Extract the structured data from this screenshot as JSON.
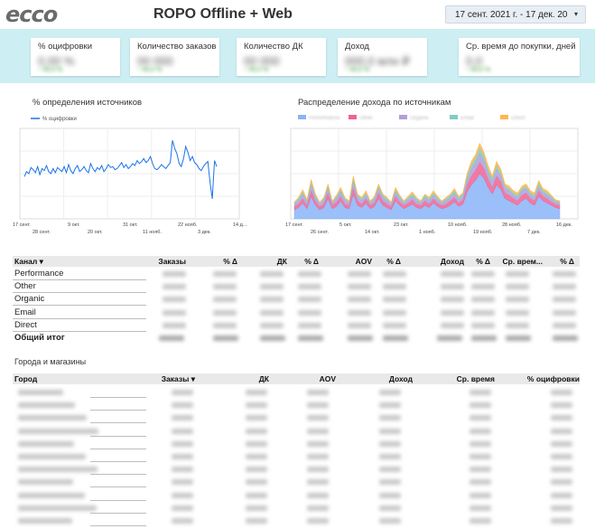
{
  "header": {
    "logo": "ecco",
    "title": "ROPO Offline + Web",
    "date_range": "17 сент. 2021 г. - 17 дек. 20",
    "caret": "▾"
  },
  "kpis": [
    {
      "label": "% оцифровки"
    },
    {
      "label": "Количество заказов"
    },
    {
      "label": "Количество ДК"
    },
    {
      "label": "Доход"
    },
    {
      "label": "Ср. время до покупки, дней"
    }
  ],
  "chart1": {
    "title": "% определения источников",
    "legend": "% оцифровки",
    "x_ticks_top": [
      "17 сент.",
      "9 окт.",
      "31 окт.",
      "22 нояб.",
      "14 д..."
    ],
    "x_ticks_bottom": [
      "28 сент.",
      "20 окт.",
      "11 нояб.",
      "3 дек."
    ]
  },
  "chart2": {
    "title": "Распределение дохода по источникам",
    "x_ticks_top": [
      "17 сент.",
      "5 окт.",
      "23 окт.",
      "10 нояб.",
      "28 нояб.",
      "16 дек."
    ],
    "x_ticks_bottom": [
      "26 сент.",
      "14 окт.",
      "1 нояб.",
      "19 нояб.",
      "7 дек."
    ]
  },
  "chart_data": [
    {
      "type": "line",
      "title": "% определения источников",
      "series": [
        {
          "name": "% оцифровки",
          "values": [
            42,
            47,
            45,
            51,
            49,
            46,
            52,
            44,
            50,
            48,
            53,
            47,
            45,
            50,
            46,
            51,
            49,
            47,
            52,
            46,
            54,
            48,
            45,
            50,
            53,
            47,
            49,
            52,
            48,
            46,
            55,
            50,
            47,
            51,
            49,
            53,
            47,
            50,
            54,
            51,
            52,
            49,
            50,
            53,
            56,
            51,
            54,
            50,
            52,
            55,
            53,
            58,
            55,
            57,
            60,
            56,
            58,
            62,
            55,
            50,
            49,
            51,
            54,
            52,
            50,
            53,
            56,
            78,
            70,
            65,
            55,
            52,
            60,
            72,
            66,
            58,
            62,
            56,
            54,
            50,
            48,
            52,
            55,
            57,
            36,
            20,
            58,
            52
          ]
        }
      ]
    },
    {
      "type": "area",
      "title": "Распределение дохода по источникам",
      "series": [
        {
          "name": "Performance",
          "values": [
            8,
            10,
            14,
            9,
            20,
            12,
            8,
            10,
            18,
            9,
            11,
            16,
            10,
            9,
            22,
            12,
            10,
            14,
            9,
            11,
            18,
            12,
            10,
            8,
            16,
            12,
            9,
            11,
            13,
            10,
            9,
            12,
            10,
            14,
            11,
            9,
            10,
            12,
            15,
            11,
            13,
            24,
            30,
            34,
            40,
            36,
            28,
            22,
            30,
            26,
            18,
            16,
            14,
            12,
            16,
            18,
            14,
            12,
            20,
            16,
            14,
            12,
            10,
            9
          ]
        },
        {
          "name": "Other",
          "values": [
            3,
            3,
            4,
            3,
            5,
            4,
            3,
            3,
            5,
            3,
            4,
            4,
            3,
            3,
            6,
            4,
            3,
            4,
            3,
            3,
            5,
            4,
            3,
            3,
            4,
            3,
            3,
            3,
            4,
            3,
            3,
            4,
            3,
            4,
            3,
            3,
            3,
            4,
            4,
            3,
            4,
            6,
            8,
            9,
            10,
            9,
            7,
            6,
            8,
            7,
            5,
            5,
            4,
            4,
            5,
            5,
            4,
            4,
            5,
            4,
            4,
            3,
            3,
            3
          ]
        },
        {
          "name": "Organic",
          "values": [
            2,
            3,
            4,
            3,
            5,
            3,
            2,
            3,
            4,
            2,
            3,
            4,
            3,
            2,
            5,
            3,
            3,
            3,
            2,
            3,
            4,
            3,
            3,
            2,
            4,
            3,
            2,
            3,
            3,
            3,
            2,
            3,
            3,
            3,
            3,
            2,
            3,
            3,
            4,
            3,
            3,
            5,
            6,
            7,
            8,
            7,
            6,
            5,
            6,
            5,
            4,
            4,
            3,
            3,
            4,
            4,
            3,
            3,
            4,
            3,
            3,
            3,
            2,
            2
          ]
        },
        {
          "name": "Email",
          "values": [
            1,
            2,
            2,
            1,
            3,
            2,
            1,
            2,
            2,
            1,
            2,
            2,
            2,
            1,
            3,
            2,
            2,
            2,
            1,
            2,
            2,
            2,
            2,
            1,
            2,
            2,
            1,
            2,
            2,
            2,
            1,
            2,
            2,
            2,
            2,
            1,
            2,
            2,
            2,
            2,
            2,
            3,
            4,
            4,
            5,
            4,
            3,
            3,
            4,
            3,
            2,
            2,
            2,
            2,
            2,
            2,
            2,
            2,
            3,
            2,
            2,
            2,
            1,
            1
          ]
        },
        {
          "name": "Direct",
          "values": [
            1,
            1,
            2,
            1,
            2,
            1,
            1,
            1,
            2,
            1,
            1,
            2,
            1,
            1,
            2,
            1,
            1,
            2,
            1,
            1,
            2,
            1,
            1,
            1,
            2,
            1,
            1,
            1,
            2,
            1,
            1,
            1,
            1,
            2,
            1,
            1,
            1,
            1,
            2,
            1,
            1,
            2,
            3,
            3,
            4,
            3,
            3,
            2,
            3,
            3,
            2,
            2,
            2,
            2,
            2,
            2,
            2,
            2,
            2,
            2,
            2,
            1,
            1,
            1
          ]
        }
      ]
    }
  ],
  "channels_table": {
    "headers": [
      "Канал ▾",
      "Заказы",
      "% Δ",
      "ДК",
      "% Δ",
      "AOV",
      "% Δ",
      "Доход",
      "% Δ",
      "Ср. врем...",
      "% Δ"
    ],
    "rows": [
      "Performance",
      "Other",
      "Organic",
      "Email",
      "Direct"
    ],
    "total": "Общий итог"
  },
  "cities_section": {
    "title": "Города и магазины",
    "headers": [
      "Город",
      "Заказы ▾",
      "ДК",
      "AOV",
      "Доход",
      "Ср. время",
      "% оцифровки"
    ]
  },
  "colors": {
    "line": "#1a73e8",
    "kpi_band": "#cdeef3",
    "area": [
      "#8ab4f8",
      "#f06292",
      "#b39ddb",
      "#80cbc4",
      "#ffb74d"
    ]
  }
}
